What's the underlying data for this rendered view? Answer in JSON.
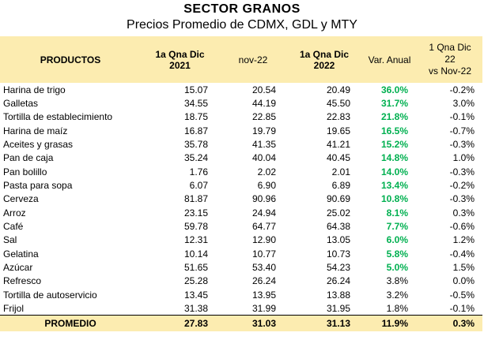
{
  "title": "SECTOR GRANOS",
  "subtitle": "Precios Promedio de CDMX, GDL y MTY",
  "headers": {
    "productos": "PRODUCTOS",
    "col1_line1": "1a Qna Dic",
    "col1_line2": "2021",
    "col2": "nov-22",
    "col3_line1": "1a Qna Dic",
    "col3_line2": "2022",
    "col4": "Var. Anual",
    "col5_line1": "1 Qna Dic",
    "col5_line2": "22",
    "col5_line3": "vs Nov-22"
  },
  "rows": [
    {
      "producto": "Harina de trigo",
      "dic21": "15.07",
      "nov22": "20.54",
      "dic22": "20.49",
      "var_anual": "36.0%",
      "vs_nov": "-0.2%",
      "highlight": true
    },
    {
      "producto": "Galletas",
      "dic21": "34.55",
      "nov22": "44.19",
      "dic22": "45.50",
      "var_anual": "31.7%",
      "vs_nov": "3.0%",
      "highlight": true
    },
    {
      "producto": "Tortilla de establecimiento",
      "dic21": "18.75",
      "nov22": "22.85",
      "dic22": "22.83",
      "var_anual": "21.8%",
      "vs_nov": "-0.1%",
      "highlight": true
    },
    {
      "producto": "Harina de maíz",
      "dic21": "16.87",
      "nov22": "19.79",
      "dic22": "19.65",
      "var_anual": "16.5%",
      "vs_nov": "-0.7%",
      "highlight": true
    },
    {
      "producto": "Aceites y grasas",
      "dic21": "35.78",
      "nov22": "41.35",
      "dic22": "41.21",
      "var_anual": "15.2%",
      "vs_nov": "-0.3%",
      "highlight": true
    },
    {
      "producto": "Pan de caja",
      "dic21": "35.24",
      "nov22": "40.04",
      "dic22": "40.45",
      "var_anual": "14.8%",
      "vs_nov": "1.0%",
      "highlight": true
    },
    {
      "producto": "Pan bolillo",
      "dic21": "1.76",
      "nov22": "2.02",
      "dic22": "2.01",
      "var_anual": "14.0%",
      "vs_nov": "-0.3%",
      "highlight": true
    },
    {
      "producto": "Pasta para sopa",
      "dic21": "6.07",
      "nov22": "6.90",
      "dic22": "6.89",
      "var_anual": "13.4%",
      "vs_nov": "-0.2%",
      "highlight": true
    },
    {
      "producto": "Cerveza",
      "dic21": "81.87",
      "nov22": "90.96",
      "dic22": "90.69",
      "var_anual": "10.8%",
      "vs_nov": "-0.3%",
      "highlight": true
    },
    {
      "producto": "Arroz",
      "dic21": "23.15",
      "nov22": "24.94",
      "dic22": "25.02",
      "var_anual": "8.1%",
      "vs_nov": "0.3%",
      "highlight": true
    },
    {
      "producto": "Café",
      "dic21": "59.78",
      "nov22": "64.77",
      "dic22": "64.38",
      "var_anual": "7.7%",
      "vs_nov": "-0.6%",
      "highlight": true
    },
    {
      "producto": "Sal",
      "dic21": "12.31",
      "nov22": "12.90",
      "dic22": "13.05",
      "var_anual": "6.0%",
      "vs_nov": "1.2%",
      "highlight": true
    },
    {
      "producto": "Gelatina",
      "dic21": "10.14",
      "nov22": "10.77",
      "dic22": "10.73",
      "var_anual": "5.8%",
      "vs_nov": "-0.4%",
      "highlight": true
    },
    {
      "producto": "Azúcar",
      "dic21": "51.65",
      "nov22": "53.40",
      "dic22": "54.23",
      "var_anual": "5.0%",
      "vs_nov": "1.5%",
      "highlight": true
    },
    {
      "producto": "Refresco",
      "dic21": "25.28",
      "nov22": "26.24",
      "dic22": "26.24",
      "var_anual": "3.8%",
      "vs_nov": "0.0%",
      "highlight": false
    },
    {
      "producto": "Tortilla de autoservicio",
      "dic21": "13.45",
      "nov22": "13.95",
      "dic22": "13.88",
      "var_anual": "3.2%",
      "vs_nov": "-0.5%",
      "highlight": false
    },
    {
      "producto": "Frijol",
      "dic21": "31.38",
      "nov22": "31.99",
      "dic22": "31.95",
      "var_anual": "1.8%",
      "vs_nov": "-0.1%",
      "highlight": false
    }
  ],
  "footer": {
    "label": "PROMEDIO",
    "dic21": "27.83",
    "nov22": "31.03",
    "dic22": "31.13",
    "var_anual": "11.9%",
    "vs_nov": "0.3%"
  },
  "colors": {
    "header_bg": "#fcecb0",
    "highlight_text": "#00b050"
  }
}
